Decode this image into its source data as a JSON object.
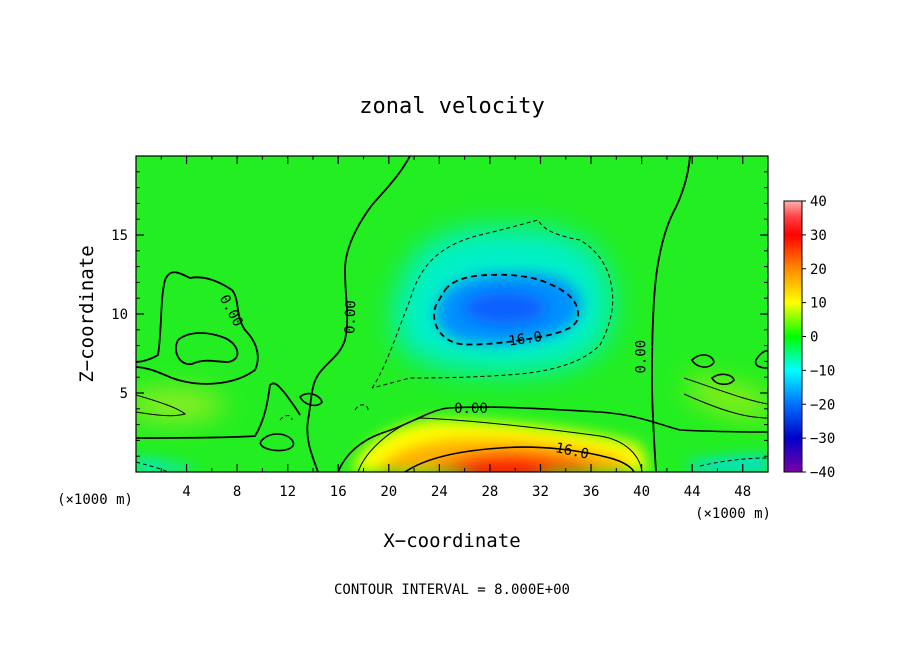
{
  "chart_data": {
    "type": "heatmap",
    "title": "zonal velocity",
    "xlabel": "X−coordinate",
    "ylabel": "Z−coordinate",
    "x_unit_left": "(×1000 m)",
    "x_unit_right": "(×1000 m)",
    "footer": "CONTOUR INTERVAL = 8.000E+00",
    "xlim": [
      0,
      50
    ],
    "ylim": [
      0,
      20
    ],
    "x_ticks": [
      4,
      8,
      12,
      16,
      20,
      24,
      28,
      32,
      36,
      40,
      44,
      48
    ],
    "x_tick_labels": [
      "4",
      "8",
      "12",
      "16",
      "20",
      "24",
      "28",
      "32",
      "36",
      "40",
      "44",
      "48"
    ],
    "y_ticks": [
      5,
      10,
      15
    ],
    "y_tick_labels": [
      "5",
      "10",
      "15"
    ],
    "colorbar": {
      "range": [
        -40,
        40
      ],
      "ticks": [
        40,
        30,
        20,
        10,
        0,
        -10,
        -20,
        -30,
        -40
      ],
      "tick_labels": [
        "40",
        "30",
        "20",
        "10",
        "0",
        "−10",
        "−20",
        "−30",
        "−40"
      ],
      "colors": [
        "#ff9a9a",
        "#ff0000",
        "#ff8000",
        "#ffff00",
        "#00ff00",
        "#00ffff",
        "#0070ff",
        "#0000cc",
        "#7000a0"
      ]
    },
    "contour_interval": 8.0,
    "contour_labels": [
      {
        "text": "0.00",
        "x": 7.5,
        "z": 10.2,
        "rotate": 62
      },
      {
        "text": "0.00",
        "x": 17.0,
        "z": 9.8,
        "rotate": -88
      },
      {
        "text": "16.0",
        "x": 30.8,
        "z": 8.4,
        "rotate": -8
      },
      {
        "text": "0.00",
        "x": 26.5,
        "z": 4.0,
        "rotate": 0
      },
      {
        "text": "16.0",
        "x": 34.5,
        "z": 1.3,
        "rotate": 12
      },
      {
        "text": "0.00",
        "x": 40.0,
        "z": 7.3,
        "rotate": -90
      }
    ],
    "features": [
      {
        "name": "negative jet aloft",
        "x": 29,
        "z": 10,
        "value": -18
      },
      {
        "name": "positive jet near surface",
        "x": 30,
        "z": 0.4,
        "value": 24
      },
      {
        "name": "weak positive wedge",
        "x": 46,
        "z": 5.5,
        "value": 8
      },
      {
        "name": "weak positive wedge",
        "x": 2,
        "z": 4.2,
        "value": 6
      }
    ]
  }
}
